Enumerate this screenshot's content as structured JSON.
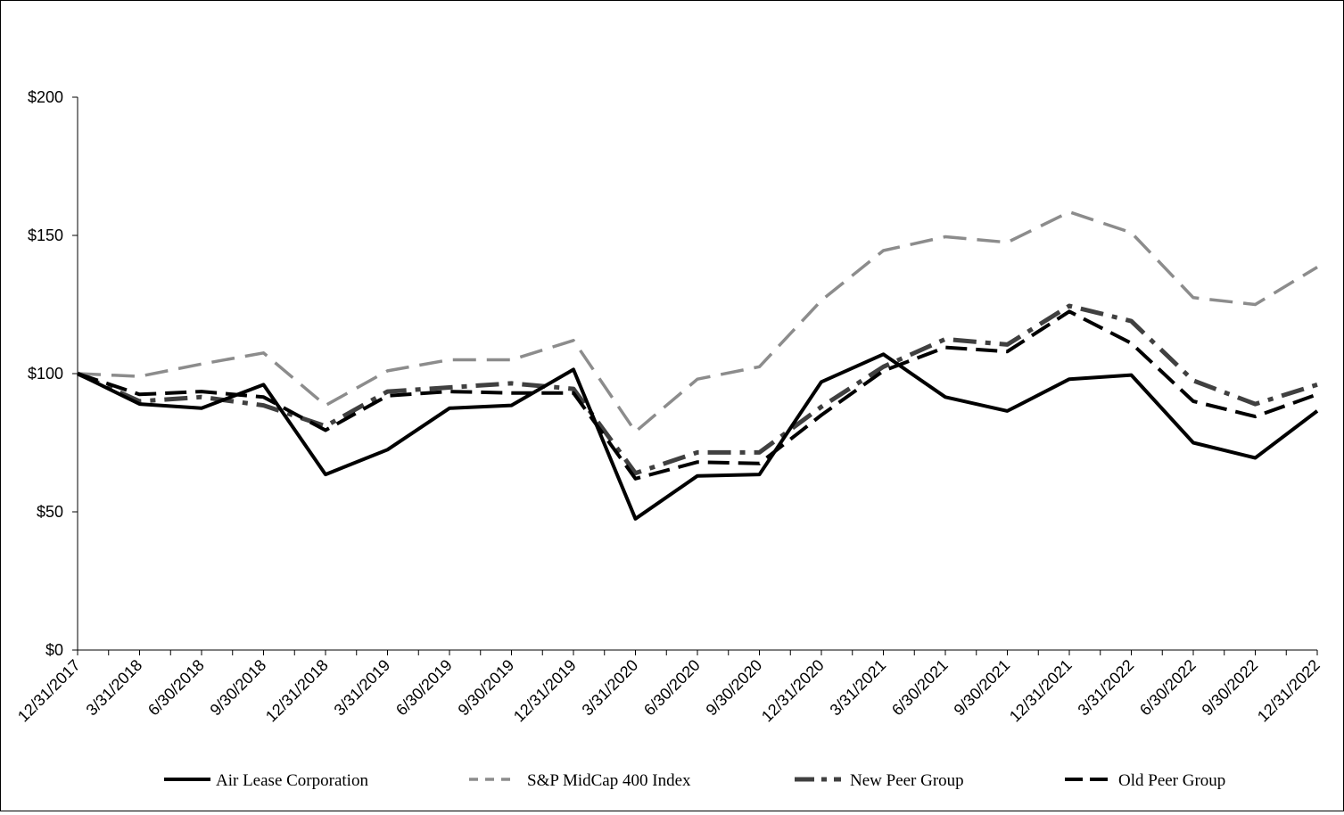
{
  "chart_data": {
    "type": "line",
    "title": "",
    "xlabel": "",
    "ylabel": "",
    "ylim": [
      0,
      200
    ],
    "yticks": [
      {
        "value": 0,
        "label": "$0"
      },
      {
        "value": 50,
        "label": "$50"
      },
      {
        "value": 100,
        "label": "$100"
      },
      {
        "value": 150,
        "label": "$150"
      },
      {
        "value": 200,
        "label": "$200"
      }
    ],
    "categories": [
      "12/31/2017",
      "3/31/2018",
      "6/30/2018",
      "9/30/2018",
      "12/31/2018",
      "3/31/2019",
      "6/30/2019",
      "9/30/2019",
      "12/31/2019",
      "3/31/2020",
      "6/30/2020",
      "9/30/2020",
      "12/31/2020",
      "3/31/2021",
      "6/30/2021",
      "9/30/2021",
      "12/31/2021",
      "3/31/2022",
      "6/30/2022",
      "9/30/2022",
      "12/31/2022"
    ],
    "grid": false,
    "legend_position": "bottom",
    "series": [
      {
        "name": "Air Lease Corporation",
        "color": "#000000",
        "dash": "solid",
        "values": [
          100,
          89,
          87.5,
          96,
          63.5,
          72.5,
          87.5,
          88.5,
          101.5,
          47.5,
          63,
          63.5,
          97,
          107,
          91.5,
          86.5,
          98,
          99.5,
          75,
          69.5,
          86.5
        ]
      },
      {
        "name": "S&P MidCap 400 Index",
        "color": "#8c8c8c",
        "dash": "long-dash",
        "values": [
          100,
          99,
          103.5,
          107.5,
          88.5,
          101,
          105,
          105,
          112,
          79,
          98,
          102.5,
          126.5,
          144.5,
          149.5,
          147.5,
          158.5,
          151,
          127.5,
          125,
          138.5
        ]
      },
      {
        "name": "New Peer Group",
        "color": "#404040",
        "dash": "dash-dot",
        "values": [
          100,
          90,
          91.5,
          88.5,
          81,
          93.5,
          95,
          96.5,
          94.5,
          64,
          71.5,
          71.5,
          88,
          102.5,
          112.5,
          110.5,
          124.5,
          119,
          97.5,
          89,
          96
        ]
      },
      {
        "name": "Old Peer Group",
        "color": "#000000",
        "dash": "dash",
        "values": [
          100,
          92.5,
          93.5,
          91.5,
          79.5,
          92,
          93.5,
          93,
          93,
          62,
          68,
          67.5,
          85,
          101,
          109.5,
          108,
          122.5,
          111,
          90,
          84.5,
          92.5
        ]
      }
    ]
  }
}
